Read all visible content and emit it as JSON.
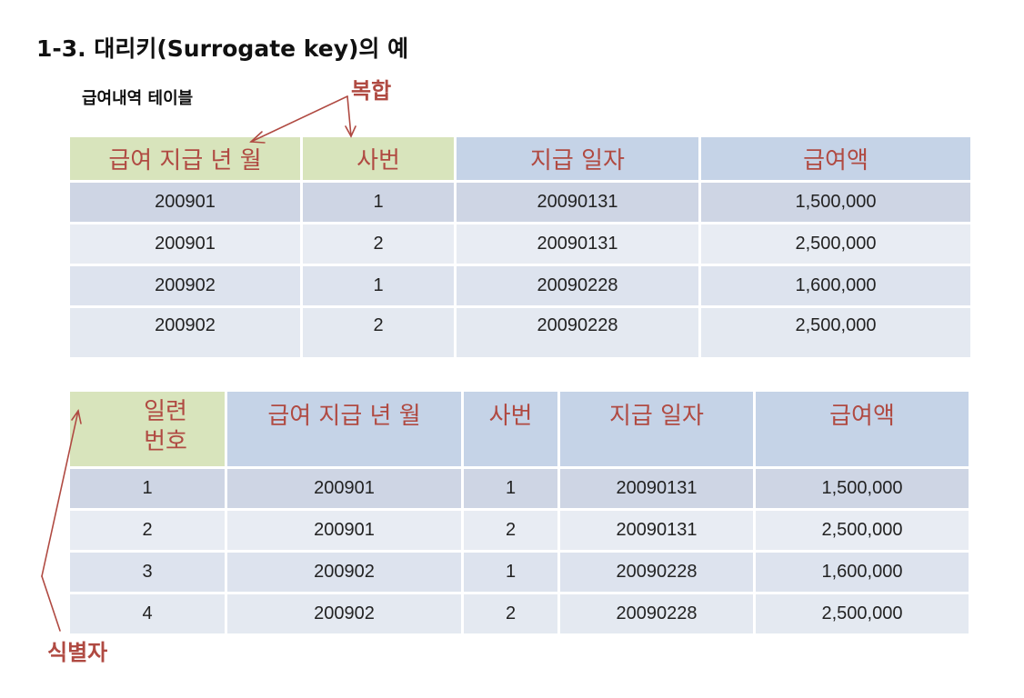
{
  "title": "1-3.  대리키(Surrogate key)의 예",
  "subtitle": "급여내역 테이블",
  "annotations": {
    "composite": "복합",
    "identifier": "식별자"
  },
  "colors": {
    "annotation": "#b04a42",
    "key_header_bg": "#d8e4bc",
    "header_bg": "#c5d3e7"
  },
  "table1": {
    "headers": [
      "급여 지급 년 월",
      "사번",
      "지급 일자",
      "급여액"
    ],
    "rows": [
      [
        "200901",
        "1",
        "20090131",
        "1,500,000"
      ],
      [
        "200901",
        "2",
        "20090131",
        "2,500,000"
      ],
      [
        "200902",
        "1",
        "20090228",
        "1,600,000"
      ],
      [
        "200902",
        "2",
        "20090228",
        "2,500,000"
      ]
    ]
  },
  "table2": {
    "headers": [
      "일련\n번호",
      "급여 지급 년 월",
      "사번",
      "지급 일자",
      "급여액"
    ],
    "rows": [
      [
        "1",
        "200901",
        "1",
        "20090131",
        "1,500,000"
      ],
      [
        "2",
        "200901",
        "2",
        "20090131",
        "2,500,000"
      ],
      [
        "3",
        "200902",
        "1",
        "20090228",
        "1,600,000"
      ],
      [
        "4",
        "200902",
        "2",
        "20090228",
        "2,500,000"
      ]
    ]
  }
}
